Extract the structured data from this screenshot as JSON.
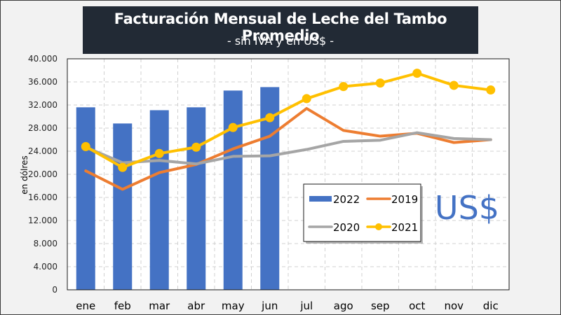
{
  "title": {
    "main": "Facturación Mensual de Leche del Tambo Promedio",
    "subtitle": "- sin IVA y en US$ -"
  },
  "annotation": "US$",
  "colors": {
    "2022": "#4472c4",
    "2019": "#ed7d31",
    "2020": "#a5a5a5",
    "2021": "#ffc000"
  },
  "chart_data": {
    "type": "bar",
    "title": "Facturación Mensual de Leche del Tambo Promedio",
    "subtitle": "- sin IVA y en US$ -",
    "xlabel": "",
    "ylabel": "en dólres",
    "ylim": [
      0,
      40000
    ],
    "yticks": [
      0,
      4000,
      8000,
      12000,
      16000,
      20000,
      24000,
      28000,
      32000,
      36000,
      40000
    ],
    "ytick_labels": [
      "0",
      "4.000",
      "8.000",
      "12.000",
      "16.000",
      "20.000",
      "24.000",
      "28.000",
      "32.000",
      "36.000",
      "40.000"
    ],
    "grid": true,
    "legend_position": "center-right",
    "categories": [
      "ene",
      "feb",
      "mar",
      "abr",
      "may",
      "jun",
      "jul",
      "ago",
      "sep",
      "oct",
      "nov",
      "dic"
    ],
    "series": [
      {
        "name": "2022",
        "type": "bar",
        "values": [
          31600,
          28800,
          31100,
          31600,
          34500,
          35100,
          null,
          null,
          null,
          null,
          null,
          null
        ]
      },
      {
        "name": "2019",
        "type": "line",
        "markers": false,
        "values": [
          20600,
          17400,
          20300,
          21700,
          24400,
          26600,
          31400,
          27600,
          26600,
          27100,
          25500,
          26000
        ]
      },
      {
        "name": "2020",
        "type": "line",
        "markers": false,
        "values": [
          24700,
          22000,
          22400,
          21800,
          23100,
          23200,
          24300,
          25700,
          25900,
          27200,
          26200,
          26000
        ]
      },
      {
        "name": "2021",
        "type": "line",
        "markers": true,
        "values": [
          24800,
          21200,
          23600,
          24700,
          28100,
          29800,
          33100,
          35200,
          35800,
          37500,
          35400,
          34600
        ]
      }
    ],
    "legend": [
      {
        "name": "2022",
        "symbol": "bar"
      },
      {
        "name": "2019",
        "symbol": "line"
      },
      {
        "name": "2020",
        "symbol": "line"
      },
      {
        "name": "2021",
        "symbol": "line-marker"
      }
    ],
    "annotations": [
      "US$"
    ]
  }
}
